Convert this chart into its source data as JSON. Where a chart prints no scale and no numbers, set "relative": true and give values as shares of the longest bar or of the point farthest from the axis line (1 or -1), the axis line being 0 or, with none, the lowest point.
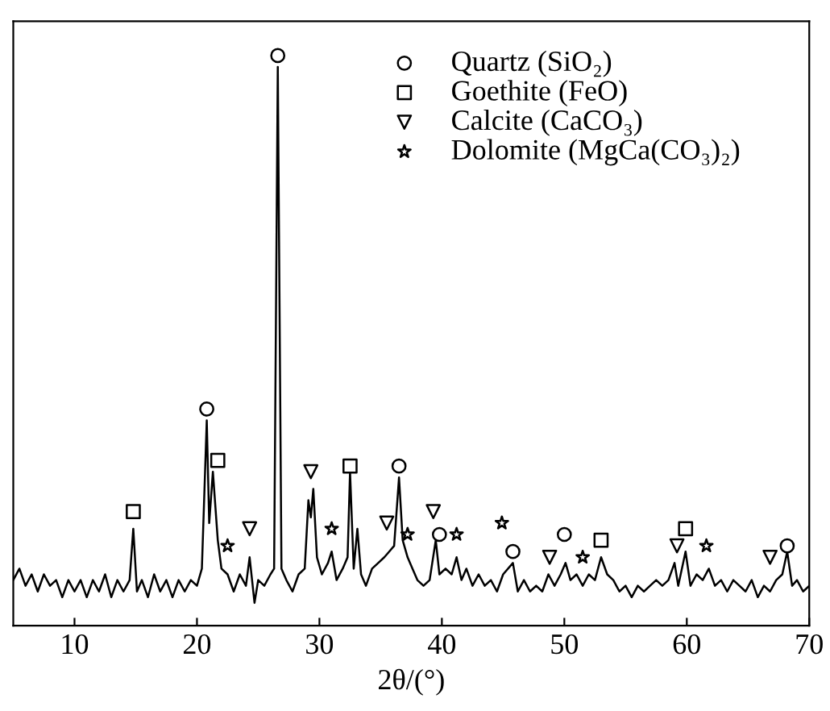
{
  "chart_data": {
    "type": "line",
    "relative": true,
    "xlabel": "2θ/(°)",
    "xlim": [
      5,
      70
    ],
    "xticks": [
      10,
      20,
      30,
      40,
      50,
      60,
      70
    ],
    "tick_labels": "x",
    "grid": false,
    "legend": "top right",
    "series": [
      {
        "color": "#000000",
        "x": [
          5,
          5.5,
          6,
          6.5,
          7,
          7.5,
          8,
          8.5,
          9,
          9.5,
          10,
          10.5,
          11,
          11.5,
          12,
          12.5,
          13,
          13.5,
          14,
          14.5,
          14.8,
          15.1,
          15.5,
          16,
          16.5,
          17,
          17.5,
          18,
          18.5,
          19,
          19.5,
          20,
          20.4,
          20.8,
          21.0,
          21.3,
          21.7,
          22,
          22.5,
          23,
          23.5,
          24,
          24.3,
          24.7,
          25,
          25.5,
          26,
          26.3,
          26.6,
          26.9,
          27.3,
          27.8,
          28.3,
          28.8,
          29.1,
          29.3,
          29.5,
          29.8,
          30.2,
          30.7,
          31,
          31.4,
          31.9,
          32.3,
          32.5,
          32.8,
          33.1,
          33.4,
          33.8,
          34.3,
          34.8,
          35.3,
          35.7,
          36.1,
          36.5,
          36.8,
          37.2,
          37.6,
          38,
          38.5,
          39,
          39.5,
          39.8,
          40.3,
          40.8,
          41.2,
          41.6,
          42,
          42.5,
          43,
          43.5,
          44,
          44.5,
          45,
          45.8,
          46.2,
          46.7,
          47.2,
          47.7,
          48.2,
          48.7,
          49.2,
          49.7,
          50.1,
          50.5,
          51,
          51.5,
          52,
          52.5,
          53,
          53.5,
          54,
          54.5,
          55,
          55.5,
          56,
          56.5,
          57,
          57.5,
          58,
          58.5,
          59,
          59.3,
          59.9,
          60.3,
          60.8,
          61.3,
          61.8,
          62.3,
          62.8,
          63.3,
          63.8,
          64.3,
          64.8,
          65.3,
          65.8,
          66.3,
          66.8,
          67.3,
          67.8,
          68.2,
          68.6,
          69,
          69.5,
          70
        ],
        "values": [
          0.08,
          0.1,
          0.07,
          0.09,
          0.06,
          0.09,
          0.07,
          0.08,
          0.05,
          0.08,
          0.06,
          0.08,
          0.05,
          0.08,
          0.06,
          0.09,
          0.05,
          0.08,
          0.06,
          0.08,
          0.17,
          0.06,
          0.08,
          0.05,
          0.09,
          0.06,
          0.08,
          0.05,
          0.08,
          0.06,
          0.08,
          0.07,
          0.1,
          0.36,
          0.18,
          0.27,
          0.15,
          0.1,
          0.09,
          0.06,
          0.09,
          0.07,
          0.12,
          0.04,
          0.08,
          0.07,
          0.09,
          0.1,
          0.98,
          0.1,
          0.08,
          0.06,
          0.09,
          0.1,
          0.22,
          0.19,
          0.24,
          0.12,
          0.09,
          0.11,
          0.13,
          0.08,
          0.1,
          0.12,
          0.27,
          0.1,
          0.17,
          0.09,
          0.07,
          0.1,
          0.11,
          0.12,
          0.13,
          0.14,
          0.26,
          0.15,
          0.12,
          0.1,
          0.08,
          0.07,
          0.08,
          0.15,
          0.09,
          0.1,
          0.09,
          0.12,
          0.08,
          0.1,
          0.07,
          0.09,
          0.07,
          0.08,
          0.06,
          0.09,
          0.11,
          0.06,
          0.08,
          0.06,
          0.07,
          0.06,
          0.09,
          0.07,
          0.09,
          0.11,
          0.08,
          0.09,
          0.07,
          0.09,
          0.08,
          0.12,
          0.09,
          0.08,
          0.06,
          0.07,
          0.05,
          0.07,
          0.06,
          0.07,
          0.08,
          0.07,
          0.08,
          0.11,
          0.07,
          0.13,
          0.07,
          0.09,
          0.08,
          0.1,
          0.07,
          0.08,
          0.06,
          0.08,
          0.07,
          0.06,
          0.08,
          0.05,
          0.07,
          0.06,
          0.08,
          0.09,
          0.13,
          0.07,
          0.08,
          0.06,
          0.07
        ]
      },
      {
        "type": "scatter",
        "name": "Quartz (SiO₂)",
        "marker": "circle",
        "color": "#000000",
        "x": [
          20.8,
          26.6,
          36.5,
          39.8,
          45.8,
          50.0,
          68.2
        ],
        "values": [
          0.38,
          1.0,
          0.28,
          0.16,
          0.13,
          0.16,
          0.14
        ]
      },
      {
        "type": "scatter",
        "name": "Goethite (FeO)",
        "marker": "square",
        "color": "#000000",
        "x": [
          14.8,
          21.7,
          32.5,
          53.0,
          59.9
        ],
        "values": [
          0.2,
          0.29,
          0.28,
          0.15,
          0.17
        ]
      },
      {
        "type": "scatter",
        "name": "Calcite (CaCO₃)",
        "marker": "triangle",
        "color": "#000000",
        "x": [
          24.3,
          29.3,
          35.5,
          39.3,
          48.8,
          59.2,
          66.8
        ],
        "values": [
          0.17,
          0.27,
          0.18,
          0.2,
          0.12,
          0.14,
          0.12
        ]
      },
      {
        "type": "scatter",
        "name": "Dolomite (MgCa(CO₃)₂)",
        "marker": "star",
        "color": "#000000",
        "x": [
          22.5,
          31.0,
          37.2,
          41.2,
          44.9,
          51.5,
          61.6
        ],
        "values": [
          0.14,
          0.17,
          0.16,
          0.16,
          0.18,
          0.12,
          0.14
        ]
      }
    ]
  }
}
